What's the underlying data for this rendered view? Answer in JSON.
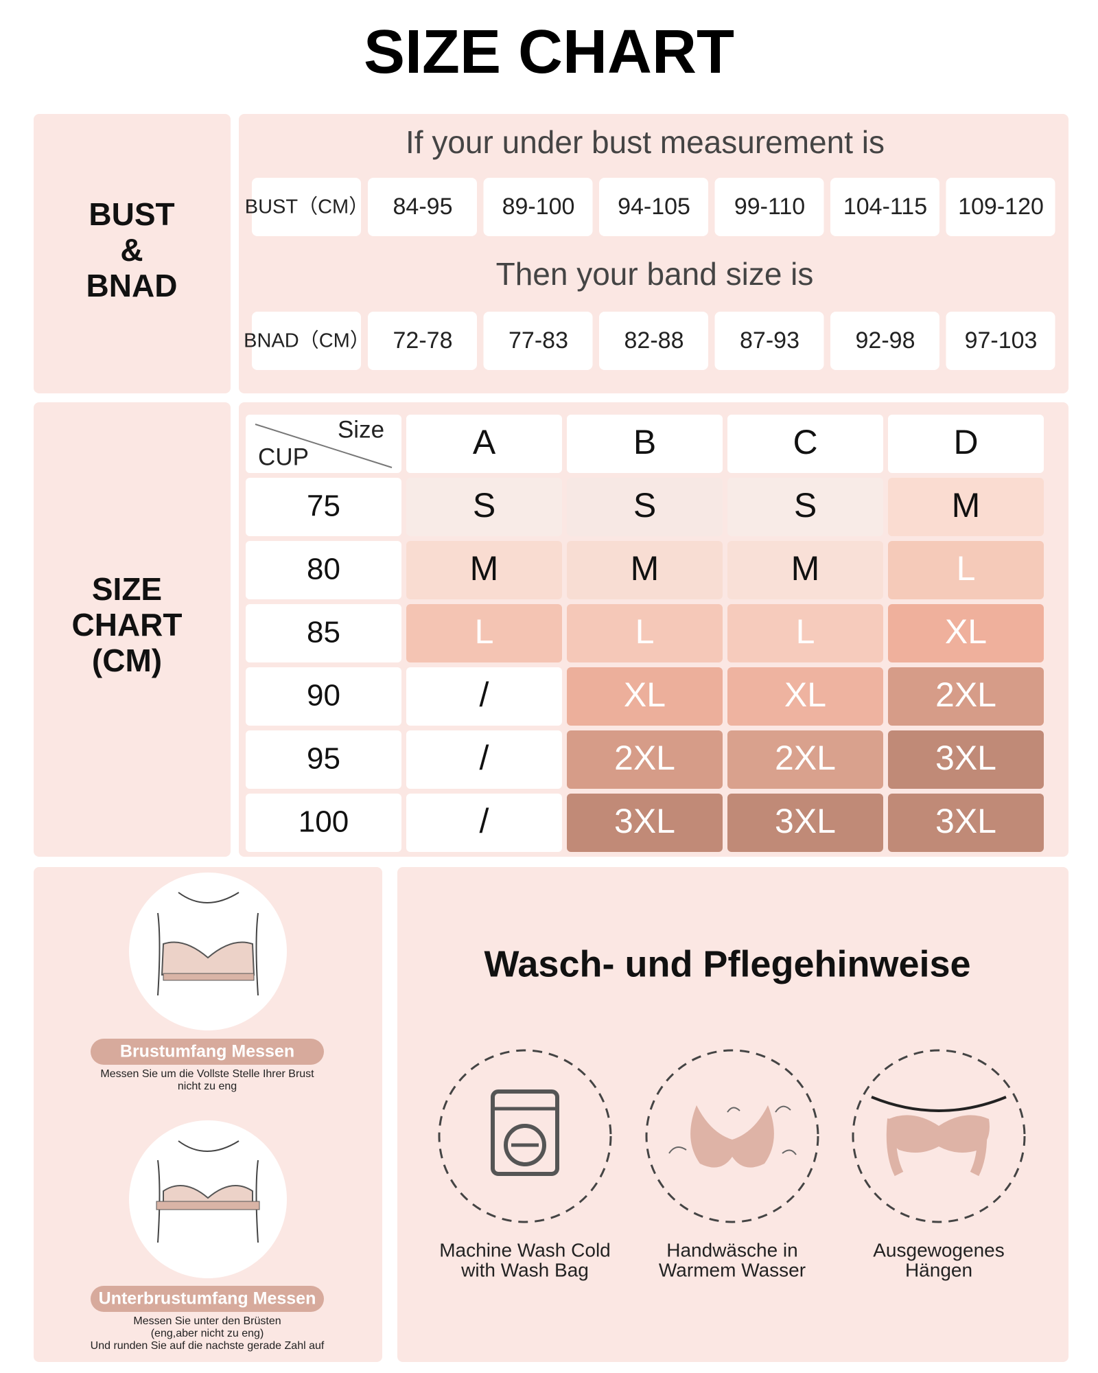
{
  "title": "SIZE CHART",
  "bust_section": {
    "label": [
      "BUST",
      "&",
      "BNAD"
    ],
    "bust_heading": "If your under bust measurement is",
    "bust_row": {
      "label": "BUST（CM）",
      "values": [
        "84-95",
        "89-100",
        "94-105",
        "99-110",
        "104-115",
        "109-120"
      ]
    },
    "band_heading": "Then your band size is",
    "band_row": {
      "label": "BNAD（CM）",
      "values": [
        "72-78",
        "77-83",
        "82-88",
        "87-93",
        "92-98",
        "97-103"
      ]
    }
  },
  "size_chart": {
    "label": [
      "SIZE",
      "CHART",
      "(CM)"
    ],
    "corner": {
      "top": "Size",
      "bottom": "CUP"
    },
    "columns": [
      "A",
      "B",
      "C",
      "D"
    ],
    "rows": [
      {
        "band": "75",
        "cells": [
          {
            "text": "S",
            "color": "#f8ebe7",
            "text_color": "#111111"
          },
          {
            "text": "S",
            "color": "#f7e8e4",
            "text_color": "#111111"
          },
          {
            "text": "S",
            "color": "#f8ebe7",
            "text_color": "#111111"
          },
          {
            "text": "M",
            "color": "#fadcd1",
            "text_color": "#111111"
          }
        ]
      },
      {
        "band": "80",
        "cells": [
          {
            "text": "M",
            "color": "#f9dcd1",
            "text_color": "#111111"
          },
          {
            "text": "M",
            "color": "#f8ddd3",
            "text_color": "#111111"
          },
          {
            "text": "M",
            "color": "#f9e0d7",
            "text_color": "#111111"
          },
          {
            "text": "L",
            "color": "#f5cab9",
            "text_color": "#ffffff"
          }
        ]
      },
      {
        "band": "85",
        "cells": [
          {
            "text": "L",
            "color": "#f4c4b3",
            "text_color": "#ffffff"
          },
          {
            "text": "L",
            "color": "#f5c8b8",
            "text_color": "#ffffff"
          },
          {
            "text": "L",
            "color": "#f6cbbc",
            "text_color": "#ffffff"
          },
          {
            "text": "XL",
            "color": "#efb09c",
            "text_color": "#ffffff"
          }
        ]
      },
      {
        "band": "90",
        "cells": [
          {
            "text": "/",
            "color": "#ffffff",
            "text_color": "#111111"
          },
          {
            "text": "XL",
            "color": "#ecaf9b",
            "text_color": "#ffffff"
          },
          {
            "text": "XL",
            "color": "#eeb3a0",
            "text_color": "#ffffff"
          },
          {
            "text": "2XL",
            "color": "#d69c88",
            "text_color": "#ffffff"
          }
        ]
      },
      {
        "band": "95",
        "cells": [
          {
            "text": "/",
            "color": "#ffffff",
            "text_color": "#111111"
          },
          {
            "text": "2XL",
            "color": "#d69c88",
            "text_color": "#ffffff"
          },
          {
            "text": "2XL",
            "color": "#d9a18d",
            "text_color": "#ffffff"
          },
          {
            "text": "3XL",
            "color": "#c08a77",
            "text_color": "#ffffff"
          }
        ]
      },
      {
        "band": "100",
        "cells": [
          {
            "text": "/",
            "color": "#ffffff",
            "text_color": "#111111"
          },
          {
            "text": "3XL",
            "color": "#c18a77",
            "text_color": "#ffffff"
          },
          {
            "text": "3XL",
            "color": "#c08a77",
            "text_color": "#ffffff"
          },
          {
            "text": "3XL",
            "color": "#c08a77",
            "text_color": "#ffffff"
          }
        ]
      }
    ]
  },
  "measure": [
    {
      "title": "Brustumfang Messen",
      "lines": [
        "Messen Sie um die Vollste Stelle Ihrer Brust",
        "nicht zu eng"
      ]
    },
    {
      "title": "Unterbrustumfang Messen",
      "lines": [
        "Messen Sie unter den Brüsten",
        "(eng,aber nicht zu eng)",
        "Und runden Sie auf die nachste gerade Zahl auf"
      ]
    }
  ],
  "care": {
    "title": "Wasch- und Pflegehinweise",
    "items": [
      {
        "lines": [
          "Machine Wash Cold",
          "with Wash Bag"
        ]
      },
      {
        "lines": [
          "Handwäsche in",
          "Warmem Wasser"
        ]
      },
      {
        "lines": [
          "Ausgewogenes",
          "Hängen"
        ]
      }
    ]
  }
}
